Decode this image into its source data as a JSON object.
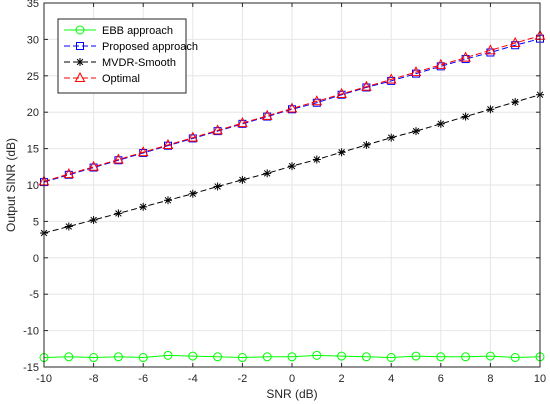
{
  "chart_data": {
    "type": "line",
    "xlabel": "SNR (dB)",
    "ylabel": "Output SINR (dB)",
    "xlim": [
      -10,
      10
    ],
    "ylim": [
      -15,
      35
    ],
    "xticks": [
      -10,
      -8,
      -6,
      -4,
      -2,
      0,
      2,
      4,
      6,
      8,
      10
    ],
    "yticks": [
      -15,
      -10,
      -5,
      0,
      5,
      10,
      15,
      20,
      25,
      30,
      35
    ],
    "grid": true,
    "legend_position": "top-left",
    "x": [
      -10,
      -9,
      -8,
      -7,
      -6,
      -5,
      -4,
      -3,
      -2,
      -1,
      0,
      1,
      2,
      3,
      4,
      5,
      6,
      7,
      8,
      9,
      10
    ],
    "series": [
      {
        "name": "EBB approach",
        "color": "#00ff00",
        "marker": "circle",
        "line": "solid",
        "values": [
          -13.7,
          -13.6,
          -13.7,
          -13.6,
          -13.7,
          -13.4,
          -13.5,
          -13.6,
          -13.7,
          -13.6,
          -13.6,
          -13.4,
          -13.5,
          -13.6,
          -13.7,
          -13.5,
          -13.6,
          -13.6,
          -13.5,
          -13.7,
          -13.6
        ]
      },
      {
        "name": "Proposed approach",
        "color": "#0000ff",
        "marker": "square",
        "line": "dashed",
        "values": [
          10.4,
          11.4,
          12.4,
          13.4,
          14.4,
          15.4,
          16.4,
          17.4,
          18.4,
          19.4,
          20.4,
          21.3,
          22.4,
          23.4,
          24.3,
          25.3,
          26.3,
          27.3,
          28.2,
          29.2,
          30.1
        ]
      },
      {
        "name": "MVDR-Smooth",
        "color": "#000000",
        "marker": "asterisk",
        "line": "dashed",
        "values": [
          3.4,
          4.3,
          5.2,
          6.1,
          7.0,
          7.9,
          8.8,
          9.8,
          10.7,
          11.6,
          12.6,
          13.5,
          14.5,
          15.5,
          16.5,
          17.4,
          18.4,
          19.4,
          20.4,
          21.4,
          22.4
        ]
      },
      {
        "name": "Optimal",
        "color": "#ff0000",
        "marker": "triangle",
        "line": "dashed",
        "values": [
          10.5,
          11.5,
          12.5,
          13.5,
          14.5,
          15.5,
          16.5,
          17.5,
          18.5,
          19.5,
          20.5,
          21.5,
          22.5,
          23.5,
          24.5,
          25.5,
          26.5,
          27.5,
          28.5,
          29.5,
          30.5
        ]
      }
    ]
  }
}
